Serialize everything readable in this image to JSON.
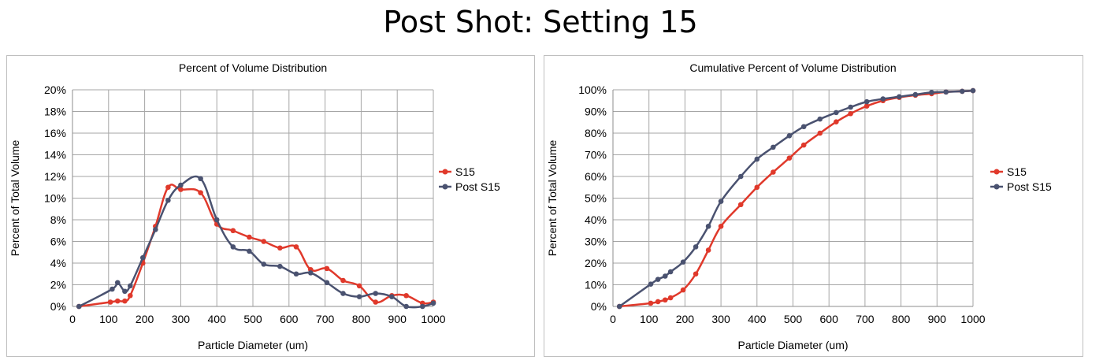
{
  "page": {
    "title": "Post Shot: Setting 15"
  },
  "chart_data": [
    {
      "type": "line",
      "title": "Percent of Volume Distribution",
      "xlabel": "Particle Diameter (um)",
      "ylabel": "Percent of Total Volume",
      "xlim": [
        0,
        1000
      ],
      "ylim": [
        0,
        20
      ],
      "x_ticks": [
        "0",
        "100",
        "200",
        "300",
        "400",
        "500",
        "600",
        "700",
        "800",
        "900",
        "1000"
      ],
      "y_ticks": [
        "0%",
        "2%",
        "4%",
        "6%",
        "8%",
        "10%",
        "12%",
        "14%",
        "16%",
        "18%",
        "20%"
      ],
      "grid": true,
      "legend_position": "right",
      "series": [
        {
          "name": "S15",
          "color": "#e0392b",
          "points": [
            [
              18,
              0
            ],
            [
              105,
              0.4
            ],
            [
              125,
              0.5
            ],
            [
              145,
              0.5
            ],
            [
              160,
              1.0
            ],
            [
              195,
              4.0
            ],
            [
              230,
              7.4
            ],
            [
              265,
              11.0
            ],
            [
              300,
              10.8
            ],
            [
              355,
              10.5
            ],
            [
              400,
              7.6
            ],
            [
              445,
              7.0
            ],
            [
              490,
              6.4
            ],
            [
              530,
              6.0
            ],
            [
              575,
              5.4
            ],
            [
              620,
              5.5
            ],
            [
              660,
              3.4
            ],
            [
              705,
              3.5
            ],
            [
              750,
              2.4
            ],
            [
              795,
              1.9
            ],
            [
              840,
              0.4
            ],
            [
              885,
              1.0
            ],
            [
              925,
              1.0
            ],
            [
              970,
              0.3
            ],
            [
              1000,
              0.4
            ]
          ]
        },
        {
          "name": "Post S15",
          "color": "#4a5270",
          "points": [
            [
              18,
              0
            ],
            [
              110,
              1.6
            ],
            [
              125,
              2.2
            ],
            [
              145,
              1.4
            ],
            [
              160,
              1.9
            ],
            [
              195,
              4.5
            ],
            [
              230,
              7.1
            ],
            [
              265,
              9.8
            ],
            [
              300,
              11.2
            ],
            [
              355,
              11.8
            ],
            [
              400,
              8.0
            ],
            [
              445,
              5.5
            ],
            [
              490,
              5.1
            ],
            [
              530,
              3.9
            ],
            [
              575,
              3.7
            ],
            [
              620,
              3.0
            ],
            [
              660,
              3.1
            ],
            [
              705,
              2.2
            ],
            [
              750,
              1.2
            ],
            [
              795,
              0.9
            ],
            [
              840,
              1.2
            ],
            [
              885,
              0.9
            ],
            [
              925,
              0.0
            ],
            [
              970,
              0.0
            ],
            [
              1000,
              0.3
            ]
          ]
        }
      ]
    },
    {
      "type": "line",
      "title": "Cumulative Percent of Volume Distribution",
      "xlabel": "Particle Diameter (um)",
      "ylabel": "Percent of Total Volume",
      "xlim": [
        0,
        1000
      ],
      "ylim": [
        0,
        100
      ],
      "x_ticks": [
        "0",
        "100",
        "200",
        "300",
        "400",
        "500",
        "600",
        "700",
        "800",
        "900",
        "1000"
      ],
      "y_ticks": [
        "0%",
        "10%",
        "20%",
        "30%",
        "40%",
        "50%",
        "60%",
        "70%",
        "80%",
        "90%",
        "100%"
      ],
      "grid": true,
      "legend_position": "right",
      "series": [
        {
          "name": "S15",
          "color": "#e0392b",
          "points": [
            [
              18,
              0
            ],
            [
              105,
              1.5
            ],
            [
              125,
              2.2
            ],
            [
              145,
              3
            ],
            [
              160,
              4
            ],
            [
              195,
              7.6
            ],
            [
              230,
              15
            ],
            [
              265,
              26
            ],
            [
              300,
              37
            ],
            [
              355,
              47
            ],
            [
              400,
              55
            ],
            [
              445,
              62
            ],
            [
              490,
              68.5
            ],
            [
              530,
              74.5
            ],
            [
              575,
              80
            ],
            [
              620,
              85.2
            ],
            [
              660,
              89
            ],
            [
              705,
              92.5
            ],
            [
              750,
              95
            ],
            [
              795,
              96.5
            ],
            [
              840,
              97.5
            ],
            [
              885,
              98.2
            ],
            [
              925,
              99
            ],
            [
              970,
              99.3
            ],
            [
              1000,
              99.6
            ]
          ]
        },
        {
          "name": "Post S15",
          "color": "#4a5270",
          "points": [
            [
              18,
              0
            ],
            [
              105,
              10.3
            ],
            [
              125,
              12.5
            ],
            [
              145,
              14
            ],
            [
              160,
              16
            ],
            [
              195,
              20.5
            ],
            [
              230,
              27.5
            ],
            [
              265,
              37
            ],
            [
              300,
              48.5
            ],
            [
              355,
              60
            ],
            [
              400,
              68
            ],
            [
              445,
              73.5
            ],
            [
              490,
              78.8
            ],
            [
              530,
              83
            ],
            [
              575,
              86.5
            ],
            [
              620,
              89.5
            ],
            [
              660,
              92
            ],
            [
              705,
              94.5
            ],
            [
              750,
              95.8
            ],
            [
              795,
              96.8
            ],
            [
              840,
              97.8
            ],
            [
              885,
              98.8
            ],
            [
              925,
              99
            ],
            [
              970,
              99.3
            ],
            [
              1000,
              99.6
            ]
          ]
        }
      ]
    }
  ]
}
